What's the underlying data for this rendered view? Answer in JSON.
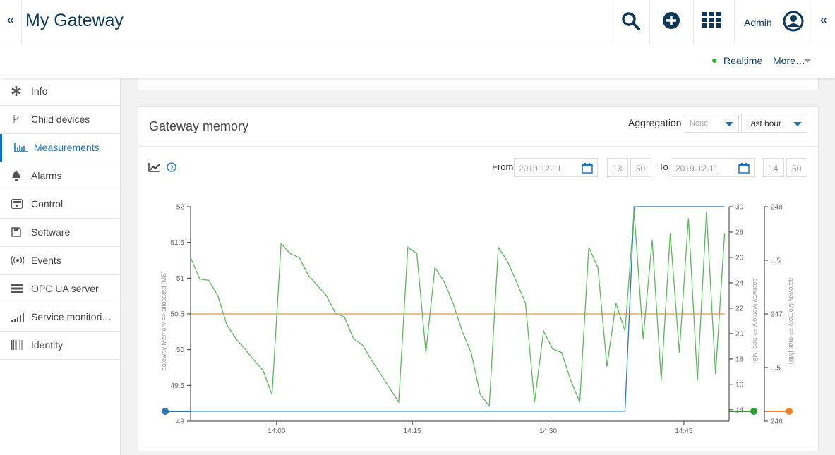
{
  "header": {
    "title": "My Gateway",
    "user": "Admin"
  },
  "toolbar": {
    "realtime": "Realtime",
    "more": "More…"
  },
  "sidebar": {
    "items": [
      "Info",
      "Child devices",
      "Measurements",
      "Alarms",
      "Control",
      "Software",
      "Events",
      "OPC UA server",
      "Service monitori…",
      "Identity"
    ]
  },
  "card": {
    "title": "Gateway memory",
    "aggregation_label": "Aggregation",
    "aggregation": "None",
    "range": "Last hour",
    "from_label": "From",
    "from_date": "2019-12-11",
    "from_hour": "13",
    "from_minute": "50",
    "to_label": "To",
    "to_date": "2019-12-11",
    "to_hour": "14",
    "to_minute": "50"
  },
  "chart_data": {
    "type": "line",
    "x": [
      830.5,
      831.5,
      832.5,
      833.5,
      834.5,
      835.5,
      836.5,
      837.5,
      838.5,
      839.5,
      840.5,
      841.5,
      842.5,
      843.5,
      844.5,
      845.5,
      846.5,
      847.5,
      848.5,
      849.5,
      850.5,
      851.5,
      852.5,
      853.5,
      854.5,
      855.5,
      856.5,
      857.5,
      858.5,
      859.5,
      860.5,
      861.5,
      862.5,
      863.5,
      864.5,
      865.5,
      866.5,
      867.5,
      868.5,
      869.5,
      870.5,
      871.5,
      872.5,
      873.5,
      874.5,
      875.5,
      876.5,
      877.5,
      878.5,
      879.5,
      880.5,
      881.5,
      882.5,
      883.5,
      884.5,
      885.5,
      886.5,
      887.5,
      888.5,
      889.5
    ],
    "xlim": [
      830.5,
      890
    ],
    "xticks": [
      {
        "value": 840,
        "label": "14:00"
      },
      {
        "value": 855,
        "label": "14:15"
      },
      {
        "value": 870,
        "label": "14:30"
      },
      {
        "value": 885,
        "label": "14:45"
      }
    ],
    "ylabel": "gateway Memory => allocated [MB]",
    "ylim": [
      49,
      52
    ],
    "yticks": [
      49,
      49.5,
      50,
      50.5,
      51,
      51.5,
      52
    ],
    "y2label": "gateway Memory => free [MB]",
    "y2lim": [
      13.1,
      30
    ],
    "y2ticks": [
      14,
      16,
      18,
      20,
      22,
      24,
      26,
      28,
      30
    ],
    "y3label": "gateway Memory => max [MB]",
    "y3lim": [
      246,
      248
    ],
    "y3ticks": [
      246,
      {
        "value": 246.5,
        "label": "...5"
      },
      247,
      {
        "value": 247.5,
        "label": "...5"
      },
      248
    ],
    "grid": false,
    "series": [
      {
        "name": "allocated",
        "color": "#2a7ab8",
        "axis": "y",
        "values": [
          49.14,
          49.14,
          49.14,
          49.14,
          49.14,
          49.14,
          49.14,
          49.14,
          49.14,
          49.14,
          49.14,
          49.14,
          49.14,
          49.14,
          49.14,
          49.14,
          49.14,
          49.14,
          49.14,
          49.14,
          49.14,
          49.14,
          49.14,
          49.14,
          49.14,
          49.14,
          49.14,
          49.14,
          49.14,
          49.14,
          49.14,
          49.14,
          49.14,
          49.14,
          49.14,
          49.14,
          49.14,
          49.14,
          49.14,
          49.14,
          49.14,
          49.14,
          49.14,
          49.14,
          49.14,
          49.14,
          49.14,
          49.14,
          49.14,
          52,
          52,
          52,
          52,
          52,
          52,
          52,
          52,
          52,
          52,
          52
        ]
      },
      {
        "name": "free",
        "color": "#5cb85c",
        "axis": "y2",
        "values": [
          26,
          24.3,
          24.2,
          23,
          20.7,
          19.6,
          18.8,
          17.9,
          17.1,
          15.2,
          27.1,
          26.3,
          26,
          24.6,
          23.8,
          23,
          21.6,
          21.3,
          19.6,
          19.1,
          17.9,
          16.8,
          15.7,
          14.6,
          26.8,
          26.3,
          18.5,
          25.2,
          24.1,
          22.4,
          20.2,
          18.5,
          15.2,
          14.3,
          26.8,
          25.7,
          24.1,
          22.4,
          14.6,
          20.2,
          18.8,
          18.5,
          16.3,
          14.6,
          26.8,
          25.2,
          17.4,
          22.4,
          20.2,
          29.6,
          19.6,
          27.4,
          16.3,
          27.9,
          18.5,
          29.1,
          16.3,
          29.6,
          16.8,
          27.9
        ]
      },
      {
        "name": "max",
        "color": "#d89a3a",
        "axis": "y3",
        "values": [
          247,
          247,
          247,
          247,
          247,
          247,
          247,
          247,
          247,
          247,
          247,
          247,
          247,
          247,
          247,
          247,
          247,
          247,
          247,
          247,
          247,
          247,
          247,
          247,
          247,
          247,
          247,
          247,
          247,
          247,
          247,
          247,
          247,
          247,
          247,
          247,
          247,
          247,
          247,
          247,
          247,
          247,
          247,
          247,
          247,
          247,
          247,
          247,
          247,
          247,
          247,
          247,
          247,
          247,
          247,
          247,
          247,
          247,
          247,
          247
        ]
      }
    ]
  }
}
